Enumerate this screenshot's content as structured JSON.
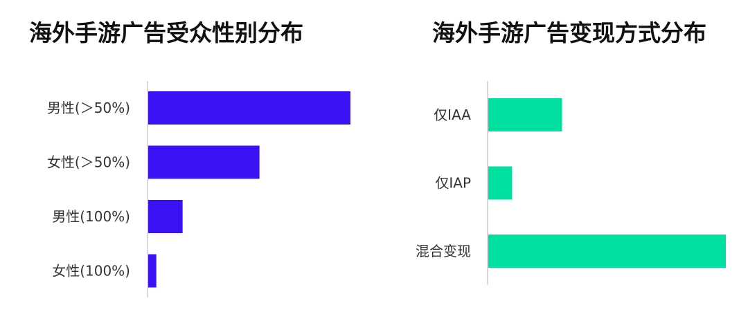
{
  "chart_data": [
    {
      "type": "bar",
      "orientation": "horizontal",
      "title": "海外手游广告受众性别分布",
      "categories": [
        "男性(＞50%)",
        "女性(＞50%)",
        "男性(100%)",
        "女性(100%)"
      ],
      "values": [
        100,
        55,
        17,
        4
      ],
      "color": "#3A12F5",
      "xlim": [
        0,
        100
      ],
      "grid": false,
      "legend": "none"
    },
    {
      "type": "bar",
      "orientation": "horizontal",
      "title": "海外手游广告变现方式分布",
      "categories": [
        "仅IAA",
        "仅IAP",
        "混合变现"
      ],
      "values": [
        31,
        10,
        100
      ],
      "color": "#00E0A0",
      "xlim": [
        0,
        100
      ],
      "grid": false,
      "legend": "none"
    }
  ]
}
